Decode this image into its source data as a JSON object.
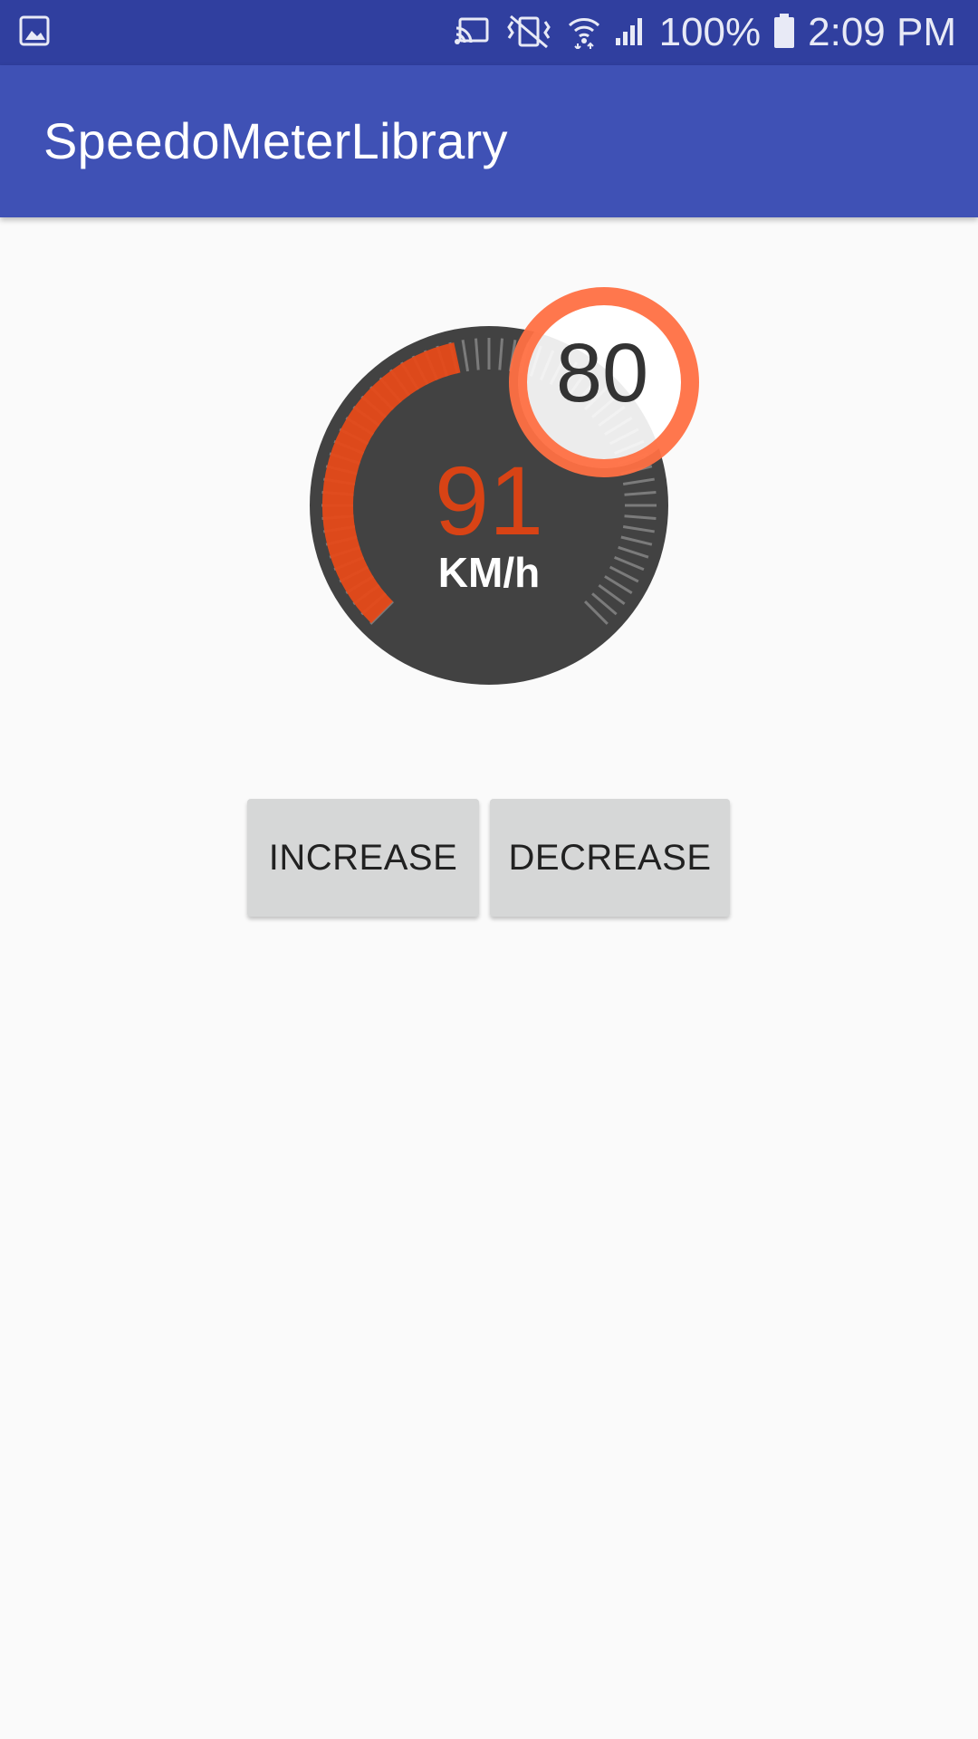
{
  "status_bar": {
    "battery_percent": "100%",
    "time": "2:09 PM",
    "icons": [
      "gallery-icon",
      "cast-icon",
      "vibrate-icon",
      "wifi-icon",
      "signal-icon",
      "battery-icon"
    ]
  },
  "app_bar": {
    "title": "SpeedoMeterLibrary"
  },
  "speedometer": {
    "speed": "91",
    "unit": "KM/h",
    "speed_limit": "80",
    "speed_fraction": 0.455,
    "colors": {
      "dial": "#424242",
      "progress": "#e64a19",
      "limit_ring": "#ff7043",
      "speed_text": "#d84315"
    }
  },
  "buttons": {
    "increase": "INCREASE",
    "decrease": "DECREASE"
  },
  "colors": {
    "status_bar": "#303f9f",
    "app_bar": "#3f51b5",
    "background": "#fafafa",
    "button": "#d6d7d7"
  }
}
